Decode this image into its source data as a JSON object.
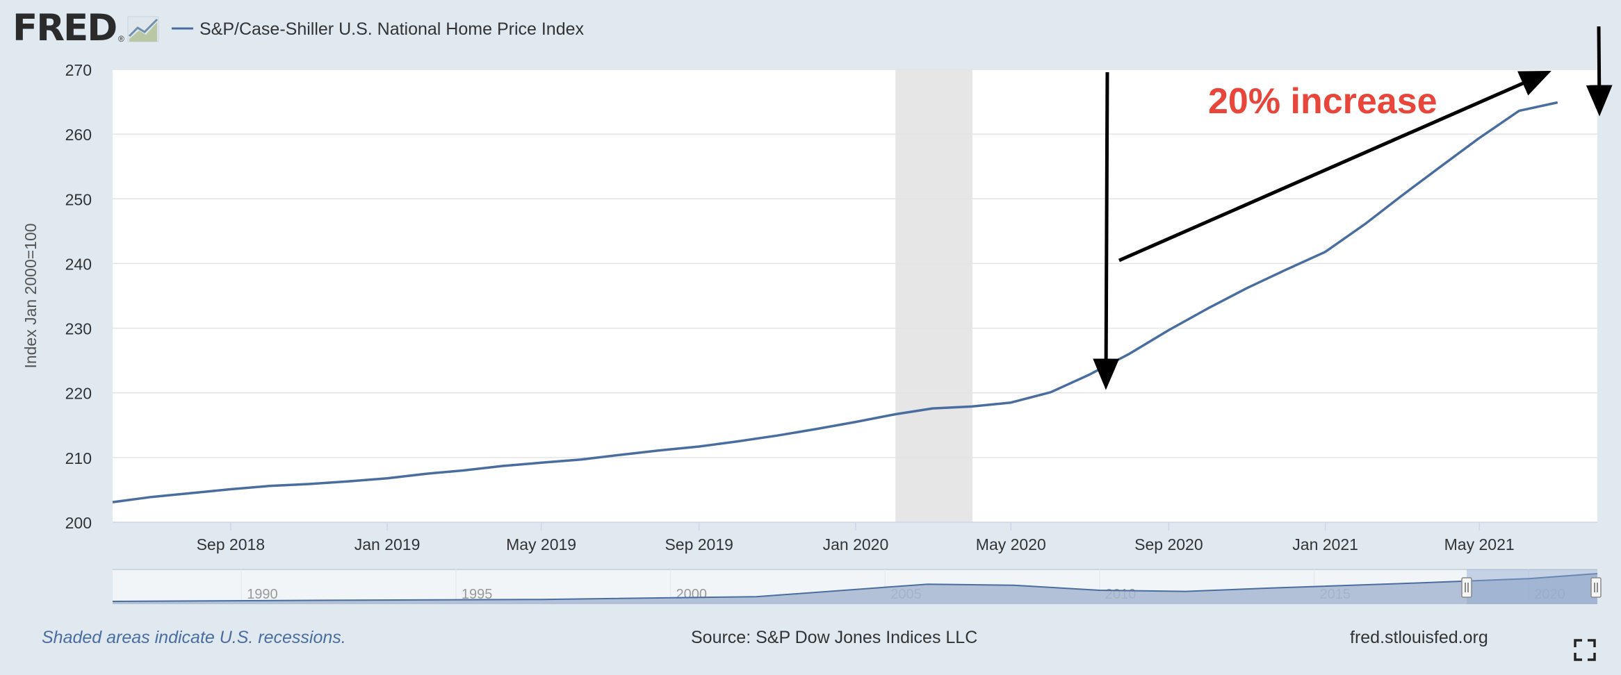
{
  "header": {
    "logo_text": "FRED",
    "logo_mark": "®",
    "logo_icon": "trend-chart-icon",
    "legend_label": "S&P/Case-Shiller U.S. National Home Price Index"
  },
  "annotation": {
    "text": "20% increase",
    "color": "#e8463b"
  },
  "footer": {
    "recession_note": "Shaded areas indicate U.S. recessions.",
    "source": "Source: S&P Dow Jones Indices LLC",
    "site": "fred.stlouisfed.org",
    "fullscreen_icon": "fullscreen-icon"
  },
  "colors": {
    "background": "#e1e9f0",
    "series": "#4a6da0",
    "recession": "#e6e6e6",
    "navigator_fill": "#a7b7d2",
    "navigator_selected": "#8ea6cc"
  },
  "chart_data": {
    "type": "line",
    "ylabel": "Index Jan 2000=100",
    "ylim": [
      200,
      270
    ],
    "yticks": [
      200,
      210,
      220,
      230,
      240,
      250,
      260,
      270
    ],
    "xlim": [
      "2018-06-01",
      "2021-08-01"
    ],
    "xticks": [
      {
        "date": "2018-09-01",
        "label": "Sep 2018"
      },
      {
        "date": "2019-01-01",
        "label": "Jan 2019"
      },
      {
        "date": "2019-05-01",
        "label": "May 2019"
      },
      {
        "date": "2019-09-01",
        "label": "Sep 2019"
      },
      {
        "date": "2020-01-01",
        "label": "Jan 2020"
      },
      {
        "date": "2020-05-01",
        "label": "May 2020"
      },
      {
        "date": "2020-09-01",
        "label": "Sep 2020"
      },
      {
        "date": "2021-01-01",
        "label": "Jan 2021"
      },
      {
        "date": "2021-05-01",
        "label": "May 2021"
      }
    ],
    "recessions": [
      {
        "start": "2020-02-01",
        "end": "2020-04-01"
      }
    ],
    "grid": true,
    "series": [
      {
        "name": "S&P/Case-Shiller U.S. National Home Price Index",
        "x": [
          "2018-06-01",
          "2018-07-01",
          "2018-08-01",
          "2018-09-01",
          "2018-10-01",
          "2018-11-01",
          "2018-12-01",
          "2019-01-01",
          "2019-02-01",
          "2019-03-01",
          "2019-04-01",
          "2019-05-01",
          "2019-06-01",
          "2019-07-01",
          "2019-08-01",
          "2019-09-01",
          "2019-10-01",
          "2019-11-01",
          "2019-12-01",
          "2020-01-01",
          "2020-02-01",
          "2020-03-01",
          "2020-04-01",
          "2020-05-01",
          "2020-06-01",
          "2020-07-01",
          "2020-08-01",
          "2020-09-01",
          "2020-10-01",
          "2020-11-01",
          "2020-12-01",
          "2021-01-01",
          "2021-02-01",
          "2021-03-01",
          "2021-04-01",
          "2021-05-01",
          "2021-06-01",
          "2021-07-01"
        ],
        "values": [
          203.1,
          203.9,
          204.5,
          205.1,
          205.6,
          205.9,
          206.3,
          206.8,
          207.5,
          208.0,
          208.7,
          209.2,
          209.7,
          210.4,
          211.1,
          211.7,
          212.5,
          213.4,
          214.4,
          215.5,
          216.7,
          217.6,
          217.9,
          218.5,
          220.1,
          222.8,
          226.0,
          229.7,
          233.0,
          236.2,
          239.0,
          241.8,
          246.1,
          250.4,
          255.0,
          259.4,
          263.6,
          264.9
        ]
      }
    ],
    "navigator": {
      "xticks": [
        "1990",
        "1995",
        "2000",
        "2005",
        "2010",
        "2015",
        "2020"
      ]
    }
  }
}
